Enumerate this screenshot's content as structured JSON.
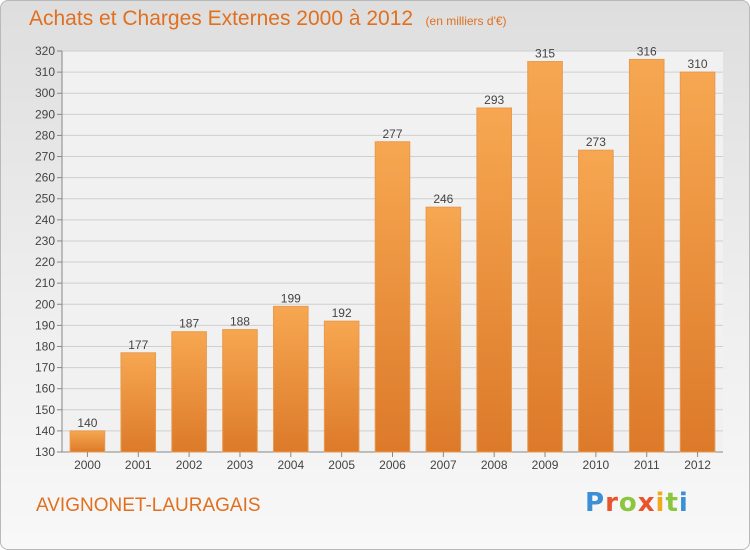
{
  "header": {
    "title": "Achats et Charges Externes 2000 à 2012",
    "unit": "(en milliers d'€)"
  },
  "footer": {
    "town": "AVIGNONET-LAURAGAIS",
    "logo_letters": [
      "P",
      "r",
      "o",
      "x",
      "i",
      "t",
      "i"
    ]
  },
  "colors": {
    "bar_light": "#f7a751",
    "bar_dark": "#dc7a2a",
    "title": "#e0701f",
    "grid": "#cfcfcf",
    "text": "#444444"
  },
  "chart_data": {
    "type": "bar",
    "title": "Achats et Charges Externes 2000 à 2012",
    "subtitle": "(en milliers d'€)",
    "categories": [
      "2000",
      "2001",
      "2002",
      "2003",
      "2004",
      "2005",
      "2006",
      "2007",
      "2008",
      "2009",
      "2010",
      "2011",
      "2012"
    ],
    "values": [
      140,
      177,
      187,
      188,
      199,
      192,
      277,
      246,
      293,
      315,
      273,
      316,
      310
    ],
    "ylim": [
      130,
      320
    ],
    "ytick_step": 10,
    "grid": true,
    "data_labels": true
  }
}
